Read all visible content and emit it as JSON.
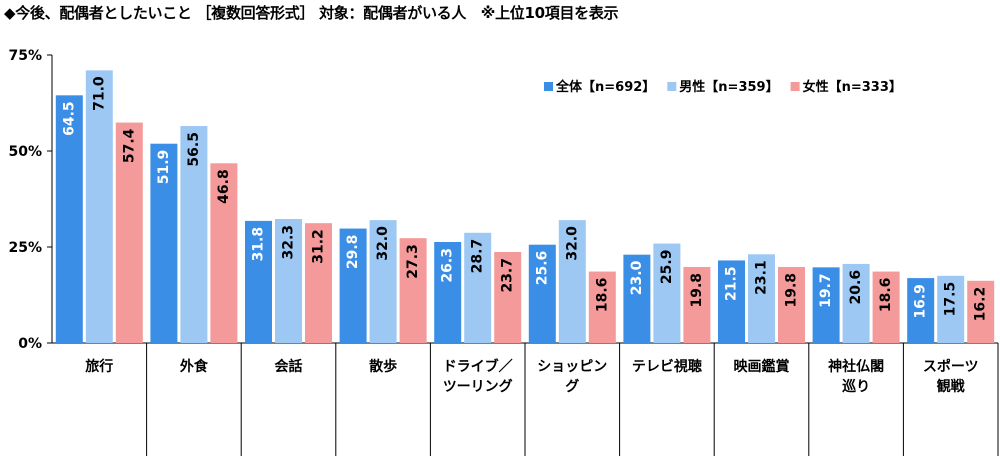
{
  "chart_data": {
    "type": "bar",
    "title": "◆今後、配偶者としたいこと ［複数回答形式］ 対象：配偶者がいる人　※上位10項目を表示",
    "categories": [
      [
        "旅行"
      ],
      [
        "外食"
      ],
      [
        "会話"
      ],
      [
        "散歩"
      ],
      [
        "ドライブ／",
        "ツーリング"
      ],
      [
        "ショッピン",
        "グ"
      ],
      [
        "テレビ視聴"
      ],
      [
        "映画鑑賞"
      ],
      [
        "神社仏閣",
        "巡り"
      ],
      [
        "スポーツ",
        "観戦"
      ]
    ],
    "series": [
      {
        "name": "全体【n=692】",
        "color": "#3a8ee6",
        "label_color": "#ffffff",
        "values": [
          64.5,
          51.9,
          31.8,
          29.8,
          26.3,
          25.6,
          23.0,
          21.5,
          19.7,
          16.9
        ]
      },
      {
        "name": "男性【n=359】",
        "color": "#9dc8f4",
        "label_color": "#000000",
        "values": [
          71.0,
          56.5,
          32.3,
          32.0,
          28.7,
          32.0,
          25.9,
          23.1,
          20.6,
          17.5
        ]
      },
      {
        "name": "女性【n=333】",
        "color": "#f49a9a",
        "label_color": "#000000",
        "values": [
          57.4,
          46.8,
          31.2,
          27.3,
          23.7,
          18.6,
          19.8,
          19.8,
          18.6,
          16.2
        ]
      }
    ],
    "yticks": [
      "0%",
      "25%",
      "50%",
      "75%"
    ],
    "ylim": [
      0,
      75
    ],
    "grid": false,
    "legend_position": "top-right",
    "xlabel": "",
    "ylabel": ""
  }
}
